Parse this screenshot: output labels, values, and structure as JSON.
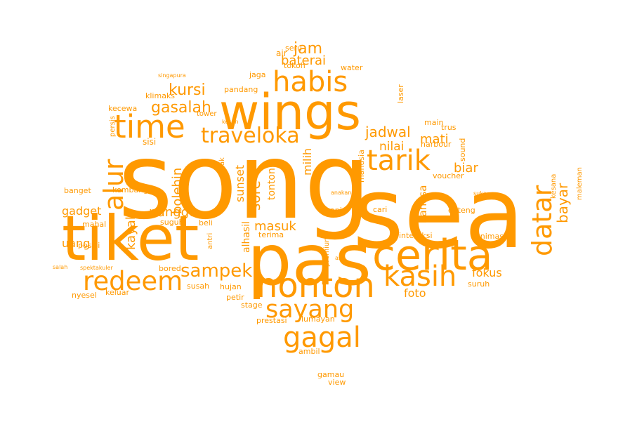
{
  "accent_color": "#ff9900",
  "words": [
    {
      "text": "song"
    },
    {
      "text": "sea"
    },
    {
      "text": "tiket"
    },
    {
      "text": "pas"
    },
    {
      "text": "wings"
    },
    {
      "text": "cerita"
    },
    {
      "text": "nonton"
    },
    {
      "text": "habis"
    },
    {
      "text": "time"
    },
    {
      "text": "tarik"
    },
    {
      "text": "redeem"
    },
    {
      "text": "kasih"
    },
    {
      "text": "sayang"
    },
    {
      "text": "gagal"
    },
    {
      "text": "datar"
    },
    {
      "text": "alur"
    },
    {
      "text": "traveloka"
    },
    {
      "text": "sampek"
    },
    {
      "text": "jam"
    },
    {
      "text": "kursi"
    },
    {
      "text": "gasalah"
    },
    {
      "text": "baterai"
    },
    {
      "text": "jadwal"
    },
    {
      "text": "mati"
    },
    {
      "text": "nilai"
    },
    {
      "text": "biar"
    },
    {
      "text": "bayar"
    },
    {
      "text": "bolehin"
    },
    {
      "text": "sunset"
    },
    {
      "text": "sore"
    },
    {
      "text": "tonton"
    },
    {
      "text": "milih"
    },
    {
      "text": "nunggu"
    },
    {
      "text": "masuk"
    },
    {
      "text": "gadget"
    },
    {
      "text": "kayak"
    },
    {
      "text": "uang"
    },
    {
      "text": "fokus"
    },
    {
      "text": "foto"
    },
    {
      "text": "bahasa"
    },
    {
      "text": "alhasil"
    },
    {
      "text": "seru"
    },
    {
      "text": "air"
    },
    {
      "text": "tokoh"
    },
    {
      "text": "water"
    },
    {
      "text": "jaga"
    },
    {
      "text": "pandang"
    },
    {
      "text": "laser"
    },
    {
      "text": "singapura"
    },
    {
      "text": "klimaks"
    },
    {
      "text": "kecewa"
    },
    {
      "text": "tower"
    },
    {
      "text": "persis"
    },
    {
      "text": "kesan"
    },
    {
      "text": "main"
    },
    {
      "text": "trus"
    },
    {
      "text": "sisi"
    },
    {
      "text": "harbour"
    },
    {
      "text": "sound"
    },
    {
      "text": "manusia"
    },
    {
      "text": "uenak"
    },
    {
      "text": "voucher"
    },
    {
      "text": "kembang"
    },
    {
      "text": "banget"
    },
    {
      "text": "maleman"
    },
    {
      "text": "kesana"
    },
    {
      "text": "anakanak"
    },
    {
      "text": "suka"
    },
    {
      "text": "cari"
    },
    {
      "text": "api"
    },
    {
      "text": "dateng"
    },
    {
      "text": "suguh"
    },
    {
      "text": "beli"
    },
    {
      "text": "mahal"
    },
    {
      "text": "posisi"
    },
    {
      "text": "antri"
    },
    {
      "text": "terima"
    },
    {
      "text": "interaksi"
    },
    {
      "text": "animasi"
    },
    {
      "text": "premium"
    },
    {
      "text": "asa"
    },
    {
      "text": "salah"
    },
    {
      "text": "spektakuler"
    },
    {
      "text": "bored"
    },
    {
      "text": "susah"
    },
    {
      "text": "hujan"
    },
    {
      "text": "keluar"
    },
    {
      "text": "nyesel"
    },
    {
      "text": "petir"
    },
    {
      "text": "stage"
    },
    {
      "text": "suruh"
    },
    {
      "text": "prestasi"
    },
    {
      "text": "lumayan"
    },
    {
      "text": "ambil"
    },
    {
      "text": "gamau"
    },
    {
      "text": "view"
    }
  ]
}
